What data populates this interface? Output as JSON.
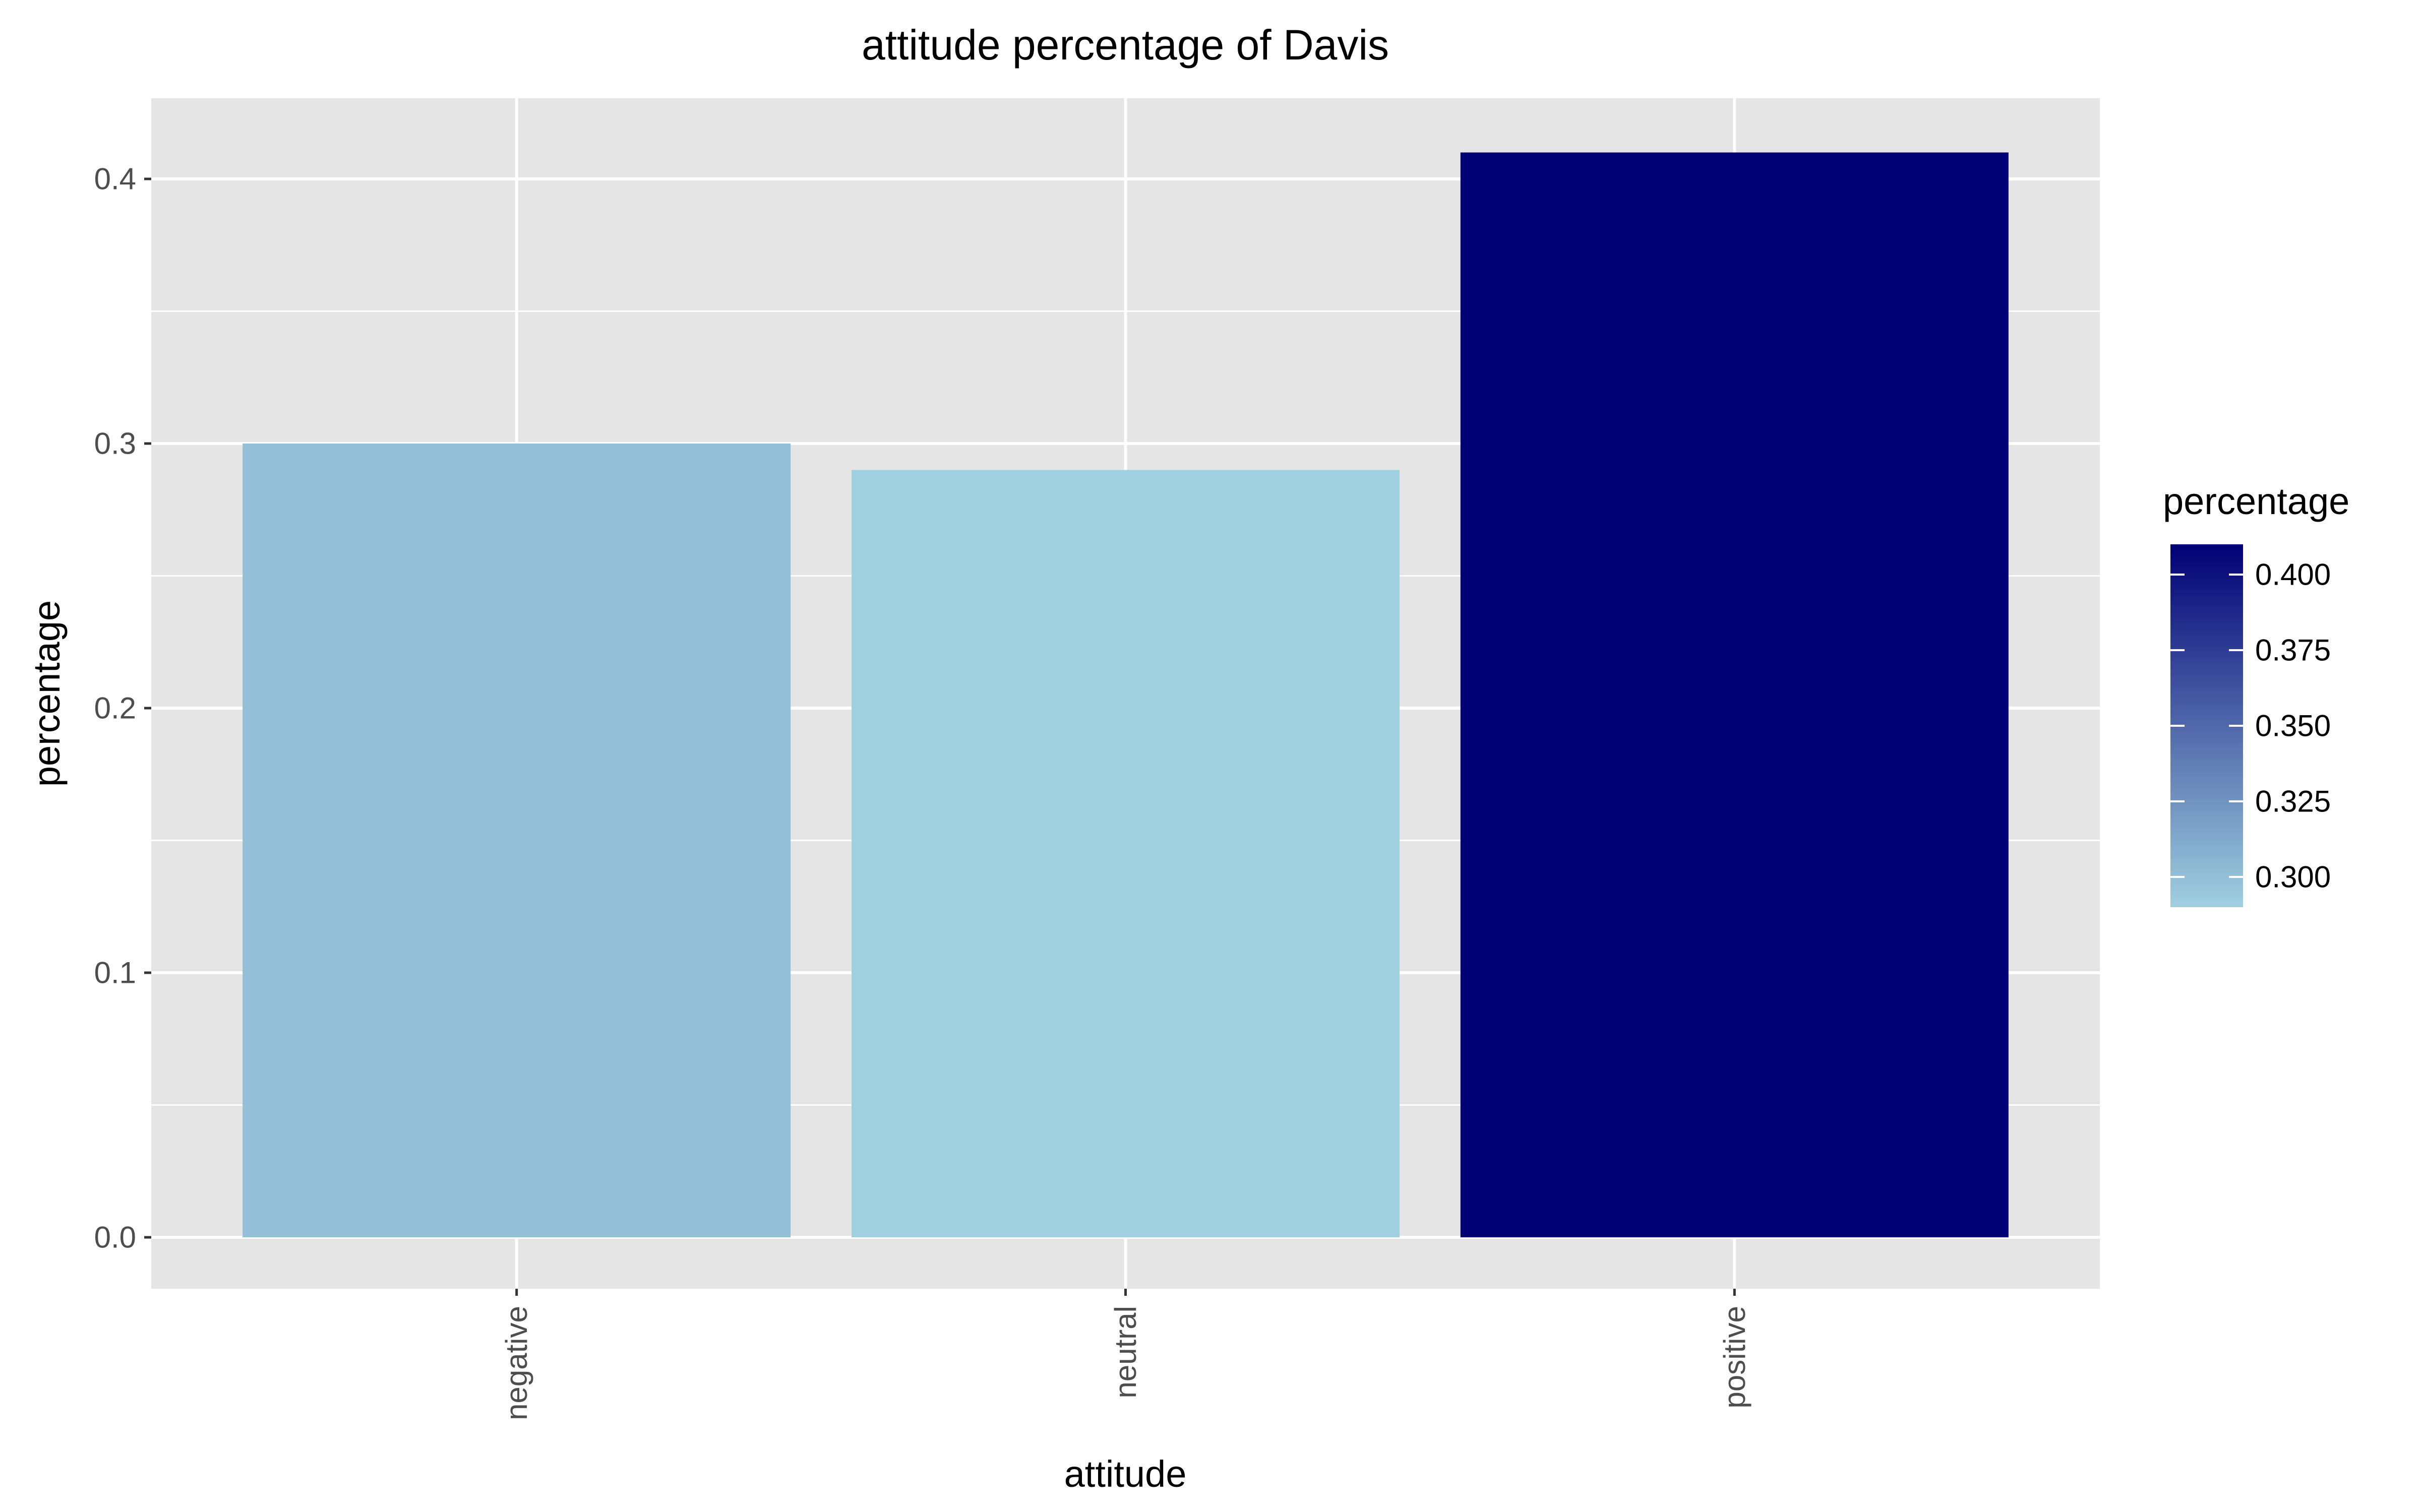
{
  "chart_data": {
    "type": "bar",
    "title": "attitude percentage of Davis",
    "xlabel": "attitude",
    "ylabel": "percentage",
    "categories": [
      "negative",
      "neutral",
      "positive"
    ],
    "values": [
      0.3,
      0.29,
      0.41
    ],
    "ylim": [
      0,
      0.43
    ],
    "yticks": [
      0.0,
      0.1,
      0.2,
      0.3,
      0.4
    ],
    "ytick_labels": [
      "0.0",
      "0.1",
      "0.2",
      "0.3",
      "0.4"
    ],
    "grid": true,
    "legend": {
      "title": "percentage",
      "placement": "right",
      "type": "colorbar",
      "range": [
        0.29,
        0.41
      ],
      "ticks": [
        0.3,
        0.325,
        0.35,
        0.375,
        0.4
      ],
      "tick_labels": [
        "0.300",
        "0.325",
        "0.350",
        "0.375",
        "0.400"
      ],
      "low_color": "#a0d0e0",
      "high_color": "#000075"
    },
    "colors": {
      "panel_background": "#e5e5e5",
      "grid": "#ffffff"
    }
  }
}
